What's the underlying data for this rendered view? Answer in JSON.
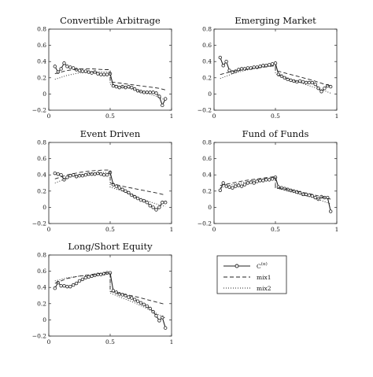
{
  "colors": {
    "line": "#222222",
    "background": "#ffffff"
  },
  "chart_data": [
    {
      "type": "line",
      "title": "Convertible Arbitrage",
      "xlim": [
        0,
        1
      ],
      "ylim": [
        -0.2,
        0.8
      ],
      "x_ticks": [
        "0",
        "0.5",
        "1"
      ],
      "y_ticks": [
        "−0.2",
        "0",
        "0.2",
        "0.4",
        "0.6",
        "0.8"
      ],
      "grid": false,
      "series": [
        {
          "name": "C^{(α)}",
          "style": "solid-circle",
          "x": [
            0.05,
            0.075,
            0.1,
            0.125,
            0.15,
            0.175,
            0.2,
            0.225,
            0.25,
            0.275,
            0.3,
            0.325,
            0.35,
            0.375,
            0.4,
            0.425,
            0.45,
            0.475,
            0.5,
            0.525,
            0.55,
            0.575,
            0.6,
            0.625,
            0.65,
            0.675,
            0.7,
            0.725,
            0.75,
            0.775,
            0.8,
            0.825,
            0.85,
            0.875,
            0.9,
            0.925,
            0.95
          ],
          "y": [
            0.34,
            0.27,
            0.31,
            0.38,
            0.34,
            0.33,
            0.32,
            0.3,
            0.29,
            0.28,
            0.28,
            0.27,
            0.26,
            0.27,
            0.25,
            0.24,
            0.24,
            0.24,
            0.25,
            0.1,
            0.09,
            0.08,
            0.09,
            0.08,
            0.09,
            0.08,
            0.06,
            0.04,
            0.03,
            0.02,
            0.02,
            0.02,
            0.02,
            0.01,
            -0.03,
            -0.14,
            -0.06
          ]
        },
        {
          "name": "mix1",
          "style": "dashed",
          "x": [
            0.05,
            0.15,
            0.25,
            0.35,
            0.45,
            0.5,
            0.5,
            0.6,
            0.7,
            0.8,
            0.9,
            0.95
          ],
          "y": [
            0.25,
            0.29,
            0.31,
            0.31,
            0.3,
            0.3,
            0.15,
            0.13,
            0.11,
            0.09,
            0.07,
            0.05
          ]
        },
        {
          "name": "mix2",
          "style": "dotted",
          "x": [
            0.05,
            0.15,
            0.25,
            0.35,
            0.45,
            0.5,
            0.5,
            0.6,
            0.7,
            0.8,
            0.9,
            0.95
          ],
          "y": [
            0.18,
            0.23,
            0.26,
            0.27,
            0.27,
            0.27,
            0.12,
            0.09,
            0.05,
            0.01,
            -0.04,
            -0.08
          ]
        }
      ]
    },
    {
      "type": "line",
      "title": "Emerging Market",
      "xlim": [
        0,
        1
      ],
      "ylim": [
        -0.2,
        0.8
      ],
      "x_ticks": [
        "0",
        "0.5",
        "1"
      ],
      "y_ticks": [
        "−0.2",
        "0",
        "0.2",
        "0.4",
        "0.6",
        "0.8"
      ],
      "grid": false,
      "series": [
        {
          "name": "C^{(α)}",
          "style": "solid-circle",
          "x": [
            0.05,
            0.075,
            0.1,
            0.125,
            0.15,
            0.175,
            0.2,
            0.225,
            0.25,
            0.275,
            0.3,
            0.325,
            0.35,
            0.375,
            0.4,
            0.425,
            0.45,
            0.475,
            0.5,
            0.525,
            0.55,
            0.575,
            0.6,
            0.625,
            0.65,
            0.675,
            0.7,
            0.725,
            0.75,
            0.775,
            0.8,
            0.825,
            0.85,
            0.875,
            0.9,
            0.925,
            0.95
          ],
          "y": [
            0.45,
            0.35,
            0.4,
            0.29,
            0.27,
            0.28,
            0.3,
            0.31,
            0.31,
            0.32,
            0.32,
            0.33,
            0.33,
            0.34,
            0.35,
            0.35,
            0.36,
            0.37,
            0.38,
            0.24,
            0.22,
            0.2,
            0.18,
            0.17,
            0.16,
            0.15,
            0.16,
            0.15,
            0.14,
            0.14,
            0.14,
            0.12,
            0.07,
            0.03,
            0.07,
            0.1,
            0.09
          ]
        },
        {
          "name": "mix1",
          "style": "dashed",
          "x": [
            0.05,
            0.15,
            0.25,
            0.35,
            0.45,
            0.5,
            0.5,
            0.6,
            0.7,
            0.8,
            0.9,
            0.95
          ],
          "y": [
            0.24,
            0.28,
            0.3,
            0.32,
            0.34,
            0.35,
            0.29,
            0.25,
            0.21,
            0.17,
            0.12,
            0.1
          ]
        },
        {
          "name": "mix2",
          "style": "dotted",
          "x": [
            0.05,
            0.15,
            0.25,
            0.35,
            0.45,
            0.5,
            0.5,
            0.6,
            0.7,
            0.8,
            0.9,
            0.95
          ],
          "y": [
            0.19,
            0.25,
            0.29,
            0.32,
            0.34,
            0.35,
            0.25,
            0.19,
            0.14,
            0.09,
            0.04,
            0.01
          ]
        }
      ]
    },
    {
      "type": "line",
      "title": "Event Driven",
      "xlim": [
        0,
        1
      ],
      "ylim": [
        -0.2,
        0.8
      ],
      "x_ticks": [
        "0",
        "0.5",
        "1"
      ],
      "y_ticks": [
        "−0.2",
        "0",
        "0.2",
        "0.4",
        "0.6",
        "0.8"
      ],
      "grid": false,
      "series": [
        {
          "name": "C^{(α)}",
          "style": "solid-circle",
          "x": [
            0.05,
            0.075,
            0.1,
            0.125,
            0.15,
            0.175,
            0.2,
            0.225,
            0.25,
            0.275,
            0.3,
            0.325,
            0.35,
            0.375,
            0.4,
            0.425,
            0.45,
            0.475,
            0.5,
            0.525,
            0.55,
            0.575,
            0.6,
            0.625,
            0.65,
            0.675,
            0.7,
            0.725,
            0.75,
            0.775,
            0.8,
            0.825,
            0.85,
            0.875,
            0.9,
            0.925,
            0.95
          ],
          "y": [
            0.42,
            0.41,
            0.4,
            0.34,
            0.37,
            0.39,
            0.4,
            0.38,
            0.39,
            0.39,
            0.4,
            0.41,
            0.41,
            0.41,
            0.42,
            0.41,
            0.4,
            0.4,
            0.43,
            0.28,
            0.26,
            0.24,
            0.22,
            0.2,
            0.18,
            0.15,
            0.13,
            0.11,
            0.09,
            0.08,
            0.06,
            0.02,
            0.0,
            -0.03,
            0.0,
            0.06,
            0.06
          ]
        },
        {
          "name": "mix1",
          "style": "dashed",
          "x": [
            0.05,
            0.15,
            0.25,
            0.35,
            0.45,
            0.5,
            0.5,
            0.6,
            0.7,
            0.8,
            0.9,
            0.95
          ],
          "y": [
            0.35,
            0.4,
            0.43,
            0.45,
            0.46,
            0.46,
            0.3,
            0.26,
            0.23,
            0.2,
            0.17,
            0.15
          ]
        },
        {
          "name": "mix2",
          "style": "dotted",
          "x": [
            0.05,
            0.15,
            0.25,
            0.35,
            0.45,
            0.5,
            0.5,
            0.6,
            0.7,
            0.8,
            0.9,
            0.95
          ],
          "y": [
            0.3,
            0.36,
            0.4,
            0.42,
            0.43,
            0.43,
            0.25,
            0.2,
            0.14,
            0.08,
            0.03,
            0.01
          ]
        }
      ]
    },
    {
      "type": "line",
      "title": "Fund of Funds",
      "xlim": [
        0,
        1
      ],
      "ylim": [
        -0.2,
        0.8
      ],
      "x_ticks": [
        "0",
        "0.5",
        "1"
      ],
      "y_ticks": [
        "−0.2",
        "0",
        "0.2",
        "0.4",
        "0.6",
        "0.8"
      ],
      "grid": false,
      "series": [
        {
          "name": "C^{(α)}",
          "style": "solid-circle",
          "x": [
            0.05,
            0.075,
            0.1,
            0.125,
            0.15,
            0.175,
            0.2,
            0.225,
            0.25,
            0.275,
            0.3,
            0.325,
            0.35,
            0.375,
            0.4,
            0.425,
            0.45,
            0.475,
            0.5,
            0.525,
            0.55,
            0.575,
            0.6,
            0.625,
            0.65,
            0.675,
            0.7,
            0.725,
            0.75,
            0.775,
            0.8,
            0.825,
            0.85,
            0.875,
            0.9,
            0.925,
            0.95
          ],
          "y": [
            0.21,
            0.3,
            0.26,
            0.25,
            0.24,
            0.26,
            0.27,
            0.26,
            0.28,
            0.3,
            0.31,
            0.3,
            0.32,
            0.33,
            0.33,
            0.34,
            0.34,
            0.35,
            0.37,
            0.25,
            0.24,
            0.23,
            0.22,
            0.21,
            0.2,
            0.19,
            0.18,
            0.16,
            0.16,
            0.15,
            0.14,
            0.12,
            0.1,
            0.13,
            0.12,
            0.12,
            -0.05
          ]
        },
        {
          "name": "mix1",
          "style": "dashed",
          "x": [
            0.05,
            0.15,
            0.25,
            0.35,
            0.45,
            0.5,
            0.5,
            0.6,
            0.7,
            0.8,
            0.9,
            0.95
          ],
          "y": [
            0.27,
            0.3,
            0.33,
            0.35,
            0.37,
            0.38,
            0.25,
            0.22,
            0.19,
            0.16,
            0.12,
            0.1
          ]
        },
        {
          "name": "mix2",
          "style": "dotted",
          "x": [
            0.05,
            0.15,
            0.25,
            0.35,
            0.45,
            0.5,
            0.5,
            0.6,
            0.7,
            0.8,
            0.9,
            0.95
          ],
          "y": [
            0.24,
            0.28,
            0.31,
            0.34,
            0.36,
            0.37,
            0.24,
            0.2,
            0.16,
            0.12,
            0.07,
            0.04
          ]
        }
      ]
    },
    {
      "type": "line",
      "title": "Long/Short Equity",
      "xlim": [
        0,
        1
      ],
      "ylim": [
        -0.2,
        0.8
      ],
      "x_ticks": [
        "0",
        "0.5",
        "1"
      ],
      "y_ticks": [
        "−0.2",
        "0",
        "0.2",
        "0.4",
        "0.6",
        "0.8"
      ],
      "grid": false,
      "series": [
        {
          "name": "C^{(α)}",
          "style": "solid-circle",
          "x": [
            0.05,
            0.075,
            0.1,
            0.125,
            0.15,
            0.175,
            0.2,
            0.225,
            0.25,
            0.275,
            0.3,
            0.325,
            0.35,
            0.375,
            0.4,
            0.425,
            0.45,
            0.475,
            0.5,
            0.525,
            0.55,
            0.575,
            0.6,
            0.625,
            0.65,
            0.675,
            0.7,
            0.725,
            0.75,
            0.775,
            0.8,
            0.825,
            0.85,
            0.875,
            0.9,
            0.925,
            0.95
          ],
          "y": [
            0.39,
            0.46,
            0.42,
            0.42,
            0.41,
            0.41,
            0.43,
            0.45,
            0.48,
            0.5,
            0.52,
            0.53,
            0.54,
            0.55,
            0.56,
            0.56,
            0.57,
            0.58,
            0.58,
            0.36,
            0.34,
            0.32,
            0.31,
            0.3,
            0.28,
            0.27,
            0.25,
            0.23,
            0.21,
            0.19,
            0.17,
            0.14,
            0.1,
            0.05,
            -0.01,
            0.03,
            -0.1
          ]
        },
        {
          "name": "mix1",
          "style": "dashed",
          "x": [
            0.05,
            0.15,
            0.25,
            0.35,
            0.45,
            0.5,
            0.5,
            0.6,
            0.7,
            0.8,
            0.9,
            0.95
          ],
          "y": [
            0.45,
            0.51,
            0.54,
            0.56,
            0.58,
            0.58,
            0.35,
            0.32,
            0.29,
            0.25,
            0.21,
            0.19
          ]
        },
        {
          "name": "mix2",
          "style": "dotted",
          "x": [
            0.05,
            0.15,
            0.25,
            0.35,
            0.45,
            0.5,
            0.5,
            0.6,
            0.7,
            0.8,
            0.9,
            0.95
          ],
          "y": [
            0.48,
            0.52,
            0.54,
            0.55,
            0.56,
            0.57,
            0.33,
            0.27,
            0.21,
            0.14,
            0.06,
            0.02
          ]
        }
      ]
    }
  ],
  "legend": {
    "placement": "bottom-right",
    "items": [
      {
        "label_base": "C",
        "label_sup": "(α)",
        "style": "solid-circle"
      },
      {
        "label": "mix1",
        "style": "dashed"
      },
      {
        "label": "mix2",
        "style": "dotted"
      }
    ]
  }
}
